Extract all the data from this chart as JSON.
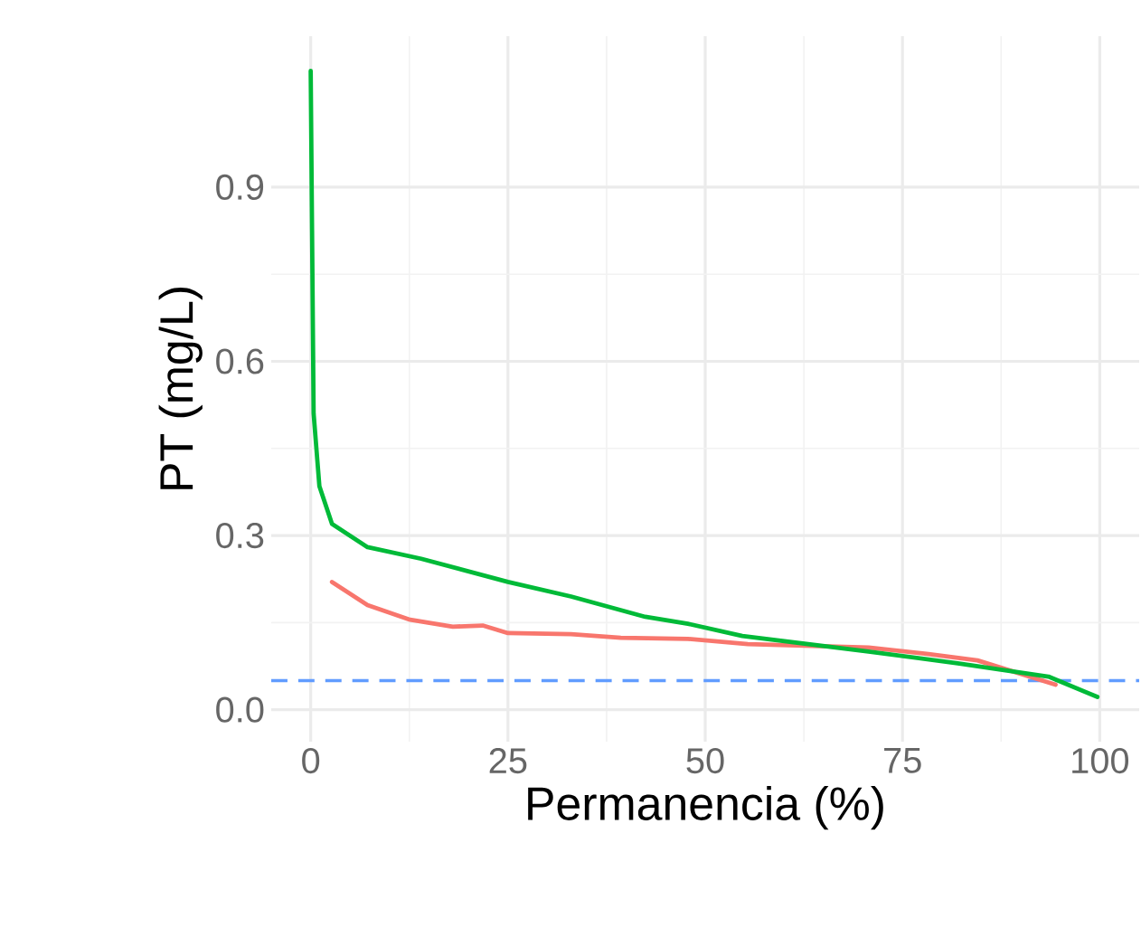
{
  "chart_data": {
    "type": "line",
    "xlabel": "Permanencia (%)",
    "ylabel": "PT (mg/L)",
    "xlim": [
      -5,
      105
    ],
    "ylim": [
      -0.055,
      1.16
    ],
    "xticks": [
      0,
      25,
      50,
      75,
      100
    ],
    "yticks": [
      {
        "value": 0,
        "label": "0.0"
      },
      0.3,
      0.6,
      0.9
    ],
    "grid": true,
    "marker": "none",
    "line_style": "solid",
    "series": [
      {
        "color": "#f8766d",
        "x": [
          2.7,
          7.2,
          12.6,
          18,
          21.8,
          25,
          33,
          39.3,
          47.8,
          55.4,
          70.7,
          78.3,
          84.5,
          94.4
        ],
        "values": [
          0.22,
          0.18,
          0.155,
          0.143,
          0.145,
          0.132,
          0.13,
          0.124,
          0.122,
          0.113,
          0.107,
          0.096,
          0.085,
          0.043
        ]
      },
      {
        "color": "#00ba38",
        "x": [
          0,
          0.37,
          1.1,
          2.7,
          7.2,
          14,
          25,
          33,
          42.4,
          47.8,
          54.7,
          70.7,
          82,
          93.5,
          99.7
        ],
        "values": [
          1.1,
          0.51,
          0.385,
          0.32,
          0.28,
          0.26,
          0.22,
          0.195,
          0.16,
          0.148,
          0.127,
          0.1,
          0.08,
          0.057,
          0.022
        ]
      }
    ],
    "ref_lines": [
      {
        "axis": "y",
        "value": 0.05,
        "color": "#619cff",
        "line_style": "dashed"
      }
    ]
  }
}
